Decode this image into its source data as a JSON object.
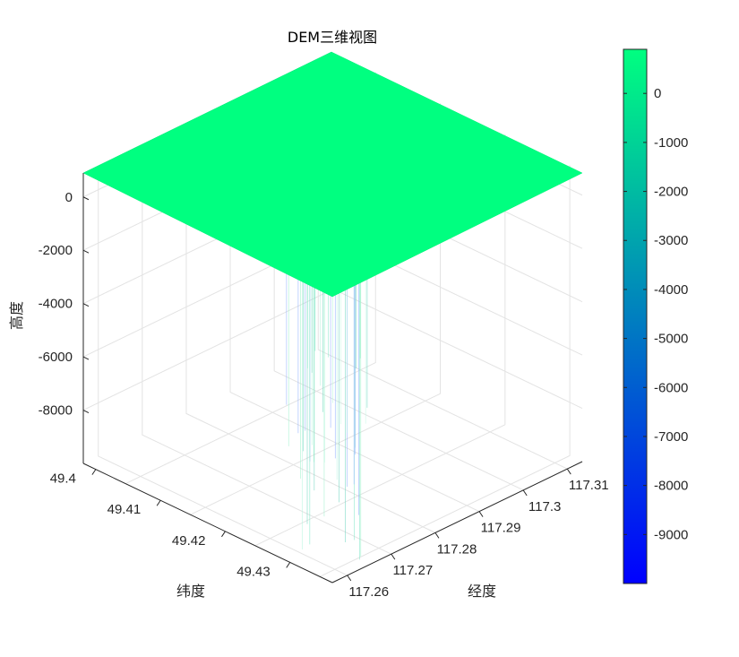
{
  "chart_data": {
    "type": "surface3d",
    "title": "DEM三维视图",
    "xlabel": "经度",
    "ylabel": "纬度",
    "zlabel": "高度",
    "x_ticks": [
      "117.26",
      "117.27",
      "117.28",
      "117.29",
      "117.3",
      "117.31"
    ],
    "y_ticks": [
      "49.4",
      "49.41",
      "49.42",
      "49.43"
    ],
    "z_ticks": [
      "0",
      "-2000",
      "-4000",
      "-6000",
      "-8000"
    ],
    "z_range": [
      -10000,
      900
    ],
    "plateau_value": 800,
    "colormap": "winter",
    "colorbar": {
      "ticks": [
        "0",
        "-1000",
        "-2000",
        "-3000",
        "-4000",
        "-5000",
        "-6000",
        "-7000",
        "-8000",
        "-9000"
      ],
      "range": [
        -10000,
        900
      ],
      "color_top": "#00FF80",
      "color_bottom": "#0000FF"
    },
    "grid": true,
    "surface_color": "#00FF80",
    "spike_colors": [
      "#9ff2cc",
      "#7fe8c8",
      "#b3f5dd",
      "#8fb0ff",
      "#6fd6c0",
      "#c3f7e6"
    ]
  }
}
